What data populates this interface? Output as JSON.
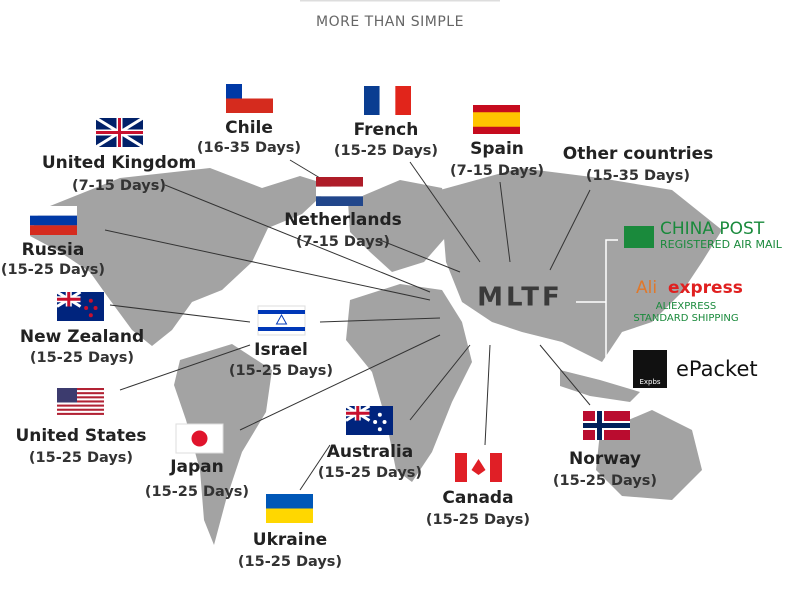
{
  "header": {
    "title": "MORE THAN SIMPLE"
  },
  "hub": "MLTF",
  "destinations": [
    {
      "name": "Chile",
      "days": "(16-35 Days)"
    },
    {
      "name": "French",
      "days": "(15-25 Days)"
    },
    {
      "name": "Spain",
      "days": "(7-15 Days)"
    },
    {
      "name": "Other countries",
      "days": "(15-35 Days)"
    },
    {
      "name": "United Kingdom",
      "days": "(7-15 Days)"
    },
    {
      "name": "Netherlands",
      "days": "(7-15 Days)"
    },
    {
      "name": "Russia",
      "days": "(15-25 Days)"
    },
    {
      "name": "New Zealand",
      "days": "(15-25 Days)"
    },
    {
      "name": "Israel",
      "days": "(15-25 Days)"
    },
    {
      "name": "United States",
      "days": "(15-25 Days)"
    },
    {
      "name": "Japan",
      "days": "(15-25 Days)"
    },
    {
      "name": "Australia",
      "days": "(15-25 Days)"
    },
    {
      "name": "Canada",
      "days": "(15-25 Days)"
    },
    {
      "name": "Norway",
      "days": "(15-25 Days)"
    },
    {
      "name": "Ukraine",
      "days": "(15-25 Days)"
    }
  ],
  "carriers": {
    "china_post": {
      "name": "CHINA POST",
      "service": "REGISTERED AIR MAIL"
    },
    "aliexpress": {
      "logo_a": "Ali",
      "logo_b": "express",
      "service_a": "ALIEXPRESS",
      "service_b": "STANDARD SHIPPING"
    },
    "epacket": {
      "name": "ePacket",
      "badge": "Expbs"
    }
  }
}
